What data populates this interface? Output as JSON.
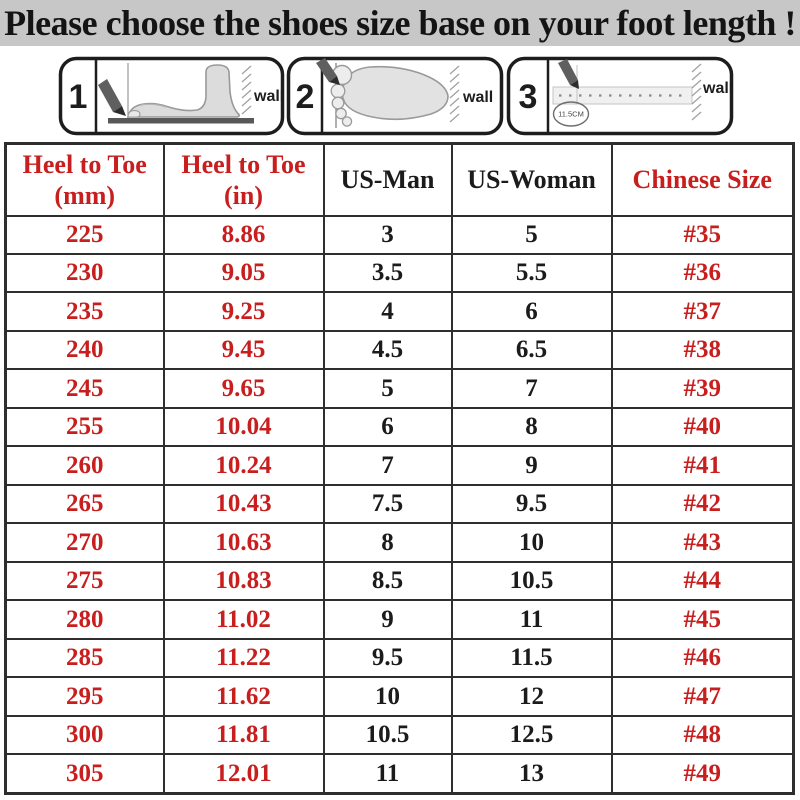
{
  "title": {
    "text": "Please choose the shoes size base on your foot length !",
    "background": "#c7c7c7",
    "text_color": "#141414"
  },
  "colors": {
    "accent_red": "#c81e1e",
    "text_black": "#1b1b1b",
    "table_border": "#2e2e2e",
    "title_bar_gray": "#c7c7c7"
  },
  "instructions": {
    "panels": [
      {
        "number": "1",
        "wall_label": "wall"
      },
      {
        "number": "2",
        "wall_label": "wall"
      },
      {
        "number": "3",
        "wall_label": "wall",
        "ruler_note": "11.5CM"
      }
    ]
  },
  "chart_data": {
    "type": "table",
    "title": "Shoe size conversion by foot length",
    "columns": [
      {
        "line1": "Heel to Toe",
        "line2": "(mm)",
        "color": "red"
      },
      {
        "line1": "Heel to Toe",
        "line2": "(in)",
        "color": "red"
      },
      {
        "line1": "US-Man",
        "line2": "",
        "color": "black"
      },
      {
        "line1": "US-Woman",
        "line2": "",
        "color": "black"
      },
      {
        "line1": "Chinese Size",
        "line2": "",
        "color": "red"
      }
    ],
    "rows": [
      [
        "225",
        "8.86",
        "3",
        "5",
        "#35"
      ],
      [
        "230",
        "9.05",
        "3.5",
        "5.5",
        "#36"
      ],
      [
        "235",
        "9.25",
        "4",
        "6",
        "#37"
      ],
      [
        "240",
        "9.45",
        "4.5",
        "6.5",
        "#38"
      ],
      [
        "245",
        "9.65",
        "5",
        "7",
        "#39"
      ],
      [
        "255",
        "10.04",
        "6",
        "8",
        "#40"
      ],
      [
        "260",
        "10.24",
        "7",
        "9",
        "#41"
      ],
      [
        "265",
        "10.43",
        "7.5",
        "9.5",
        "#42"
      ],
      [
        "270",
        "10.63",
        "8",
        "10",
        "#43"
      ],
      [
        "275",
        "10.83",
        "8.5",
        "10.5",
        "#44"
      ],
      [
        "280",
        "11.02",
        "9",
        "11",
        "#45"
      ],
      [
        "285",
        "11.22",
        "9.5",
        "11.5",
        "#46"
      ],
      [
        "295",
        "11.62",
        "10",
        "12",
        "#47"
      ],
      [
        "300",
        "11.81",
        "10.5",
        "12.5",
        "#48"
      ],
      [
        "305",
        "12.01",
        "11",
        "13",
        "#49"
      ]
    ]
  }
}
